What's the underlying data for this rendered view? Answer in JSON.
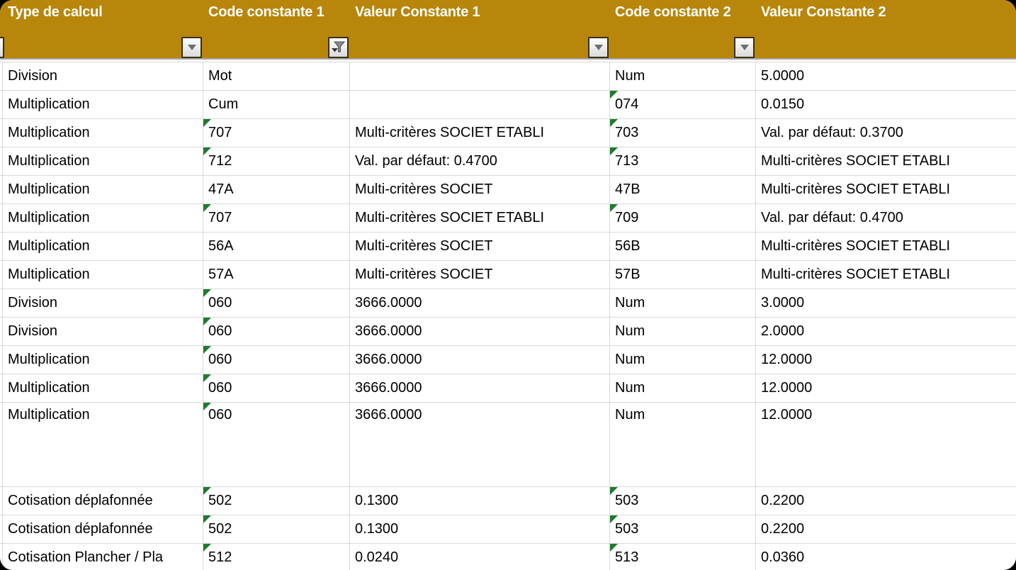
{
  "header": {
    "columns": [
      {
        "label": "Type de calcul",
        "filter": "dropdown"
      },
      {
        "label": "Code constante 1",
        "filter": "funnel"
      },
      {
        "label": "Valeur Constante 1",
        "filter": "dropdown"
      },
      {
        "label": "Code constante 2",
        "filter": "dropdown"
      },
      {
        "label": "Valeur Constante 2",
        "filter": "none"
      }
    ],
    "partial_left_column_filter": "dropdown"
  },
  "colors": {
    "header_bg": "#B8860B",
    "header_text": "#FFFFFF",
    "gridline": "#D9D9D9",
    "flag_green": "#1E7B2E",
    "divider": "#A6A6A6"
  },
  "table": {
    "rows": [
      {
        "cells": [
          {
            "t": "Division"
          },
          {
            "t": "Mot"
          },
          {
            "t": ""
          },
          {
            "t": "Num"
          },
          {
            "t": "5.0000"
          }
        ]
      },
      {
        "cells": [
          {
            "t": "Multiplication"
          },
          {
            "t": "Cum"
          },
          {
            "t": ""
          },
          {
            "t": "074",
            "flag": true
          },
          {
            "t": "0.0150"
          }
        ]
      },
      {
        "cells": [
          {
            "t": "Multiplication"
          },
          {
            "t": "707",
            "flag": true
          },
          {
            "t": "Multi-critères SOCIET ETABLI"
          },
          {
            "t": "703",
            "flag": true
          },
          {
            "t": "Val. par défaut: 0.3700"
          }
        ]
      },
      {
        "cells": [
          {
            "t": "Multiplication"
          },
          {
            "t": "712",
            "flag": true
          },
          {
            "t": "Val. par défaut: 0.4700"
          },
          {
            "t": "713",
            "flag": true
          },
          {
            "t": "Multi-critères SOCIET ETABLI"
          }
        ]
      },
      {
        "cells": [
          {
            "t": "Multiplication"
          },
          {
            "t": "47A"
          },
          {
            "t": "Multi-critères SOCIET"
          },
          {
            "t": "47B"
          },
          {
            "t": "Multi-critères SOCIET ETABLI"
          }
        ]
      },
      {
        "cells": [
          {
            "t": "Multiplication"
          },
          {
            "t": "707",
            "flag": true
          },
          {
            "t": "Multi-critères SOCIET ETABLI"
          },
          {
            "t": "709",
            "flag": true
          },
          {
            "t": "Val. par défaut: 0.4700"
          }
        ]
      },
      {
        "cells": [
          {
            "t": "Multiplication"
          },
          {
            "t": "56A"
          },
          {
            "t": "Multi-critères SOCIET"
          },
          {
            "t": "56B"
          },
          {
            "t": "Multi-critères SOCIET ETABLI"
          }
        ]
      },
      {
        "cells": [
          {
            "t": "Multiplication"
          },
          {
            "t": "57A"
          },
          {
            "t": "Multi-critères SOCIET"
          },
          {
            "t": "57B"
          },
          {
            "t": "Multi-critères SOCIET ETABLI"
          }
        ]
      },
      {
        "cells": [
          {
            "t": "Division"
          },
          {
            "t": "060",
            "flag": true
          },
          {
            "t": "3666.0000"
          },
          {
            "t": "Num"
          },
          {
            "t": "3.0000"
          }
        ]
      },
      {
        "cells": [
          {
            "t": "Division"
          },
          {
            "t": "060",
            "flag": true
          },
          {
            "t": "3666.0000"
          },
          {
            "t": "Num"
          },
          {
            "t": "2.0000"
          }
        ]
      },
      {
        "cells": [
          {
            "t": "Multiplication"
          },
          {
            "t": "060",
            "flag": true
          },
          {
            "t": "3666.0000"
          },
          {
            "t": "Num"
          },
          {
            "t": "12.0000"
          }
        ]
      },
      {
        "cells": [
          {
            "t": "Multiplication"
          },
          {
            "t": "060",
            "flag": true
          },
          {
            "t": "3666.0000"
          },
          {
            "t": "Num"
          },
          {
            "t": "12.0000"
          }
        ]
      },
      {
        "cells": [
          {
            "t": "Multiplication"
          },
          {
            "t": "060",
            "flag": true
          },
          {
            "t": "3666.0000"
          },
          {
            "t": "Num"
          },
          {
            "t": "12.0000"
          }
        ],
        "tall": true
      },
      {
        "cells": [
          {
            "t": "Cotisation déplafonnée"
          },
          {
            "t": "502",
            "flag": true
          },
          {
            "t": "0.1300"
          },
          {
            "t": "503",
            "flag": true
          },
          {
            "t": "0.2200"
          }
        ]
      },
      {
        "cells": [
          {
            "t": "Cotisation déplafonnée"
          },
          {
            "t": "502",
            "flag": true
          },
          {
            "t": "0.1300"
          },
          {
            "t": "503",
            "flag": true
          },
          {
            "t": "0.2200"
          }
        ]
      },
      {
        "cells": [
          {
            "t": "Cotisation Plancher / Pla"
          },
          {
            "t": "512",
            "flag": true
          },
          {
            "t": "0.0240"
          },
          {
            "t": "513",
            "flag": true
          },
          {
            "t": "0.0360"
          }
        ]
      }
    ]
  }
}
